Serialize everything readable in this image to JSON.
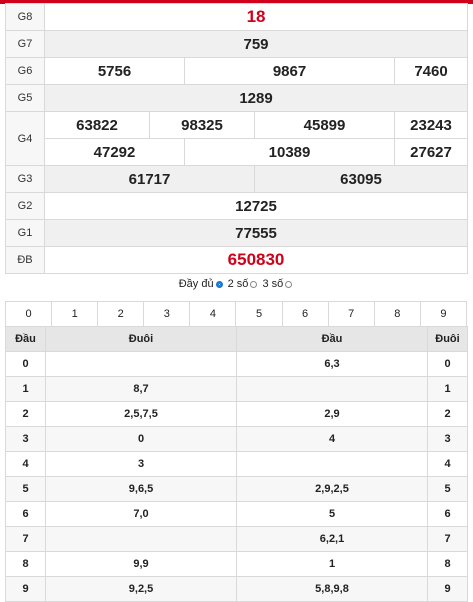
{
  "prizes": [
    {
      "label": "G8",
      "values": [
        "18"
      ],
      "highlight": true
    },
    {
      "label": "G7",
      "values": [
        "759"
      ]
    },
    {
      "label": "G6",
      "values": [
        "5756",
        "9867",
        "7460"
      ]
    },
    {
      "label": "G5",
      "values": [
        "1289"
      ]
    },
    {
      "label": "G4",
      "values": [
        "63822",
        "98325",
        "45899",
        "23243",
        "47292",
        "10389",
        "27627"
      ]
    },
    {
      "label": "G3",
      "values": [
        "61717",
        "63095"
      ]
    },
    {
      "label": "G2",
      "values": [
        "12725"
      ]
    },
    {
      "label": "G1",
      "values": [
        "77555"
      ]
    },
    {
      "label": "ĐB",
      "values": [
        "650830"
      ],
      "highlight": true
    }
  ],
  "display_options": {
    "full": "Đầy đủ",
    "two_digits": "2 số",
    "three_digits": "3 số",
    "selected": "full"
  },
  "digit_filter": [
    "0",
    "1",
    "2",
    "3",
    "4",
    "5",
    "6",
    "7",
    "8",
    "9"
  ],
  "loto_table": {
    "headers": [
      "Đầu",
      "Đuôi",
      "Đầu",
      "Đuôi"
    ],
    "rows": [
      {
        "dau": "0",
        "duoi": "",
        "dau2": "6,3",
        "duoi2": "0"
      },
      {
        "dau": "1",
        "duoi": "8,7",
        "dau2": "",
        "duoi2": "1"
      },
      {
        "dau": "2",
        "duoi": "2,5,7,5",
        "dau2": "2,9",
        "duoi2": "2"
      },
      {
        "dau": "3",
        "duoi": "0",
        "dau2": "4",
        "duoi2": "3"
      },
      {
        "dau": "4",
        "duoi": "3",
        "dau2": "",
        "duoi2": "4"
      },
      {
        "dau": "5",
        "duoi": "9,6,5",
        "dau2": "2,9,2,5",
        "duoi2": "5"
      },
      {
        "dau": "6",
        "duoi": "7,0",
        "dau2": "5",
        "duoi2": "6"
      },
      {
        "dau": "7",
        "duoi": "",
        "dau2": "6,2,1",
        "duoi2": "7"
      },
      {
        "dau": "8",
        "duoi": "9,9",
        "dau2": "1",
        "duoi2": "8"
      },
      {
        "dau": "9",
        "duoi": "9,2,5",
        "dau2": "5,8,9,8",
        "duoi2": "9"
      }
    ]
  },
  "colors": {
    "accent": "#d0021b",
    "radio": "#1976d2"
  }
}
